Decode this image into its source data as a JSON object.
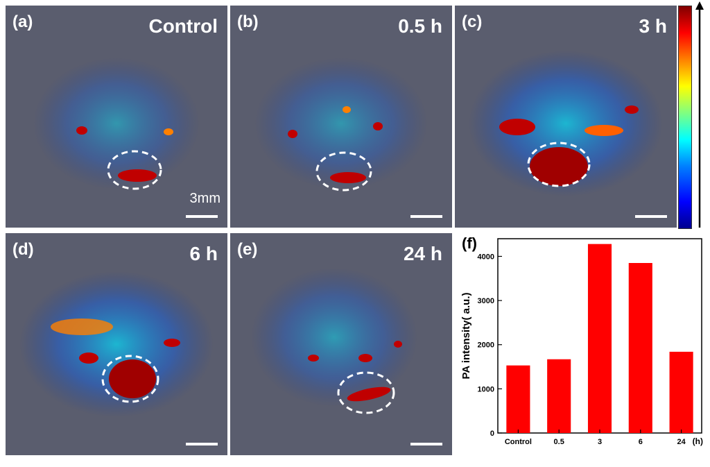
{
  "panels": [
    {
      "label": "(a)",
      "time": "Control"
    },
    {
      "label": "(b)",
      "time": "0.5 h"
    },
    {
      "label": "(c)",
      "time": "3 h"
    },
    {
      "label": "(d)",
      "time": "6 h"
    },
    {
      "label": "(e)",
      "time": "24 h"
    }
  ],
  "scale_label": "3mm",
  "colors": {
    "bar": "#ff0000",
    "panel_bg": "#5a5d6e",
    "hot": "#b00000"
  },
  "chart_data": {
    "type": "bar",
    "label": "(f)",
    "categories": [
      "Control",
      "0.5",
      "3",
      "6",
      "24"
    ],
    "values": [
      1530,
      1670,
      4280,
      3850,
      1840
    ],
    "ylabel": "PA intensity( a.u.)",
    "xunit": "(h)",
    "ylim": [
      0,
      4400
    ],
    "yticks": [
      0,
      1000,
      2000,
      3000,
      4000
    ],
    "grid": false
  }
}
